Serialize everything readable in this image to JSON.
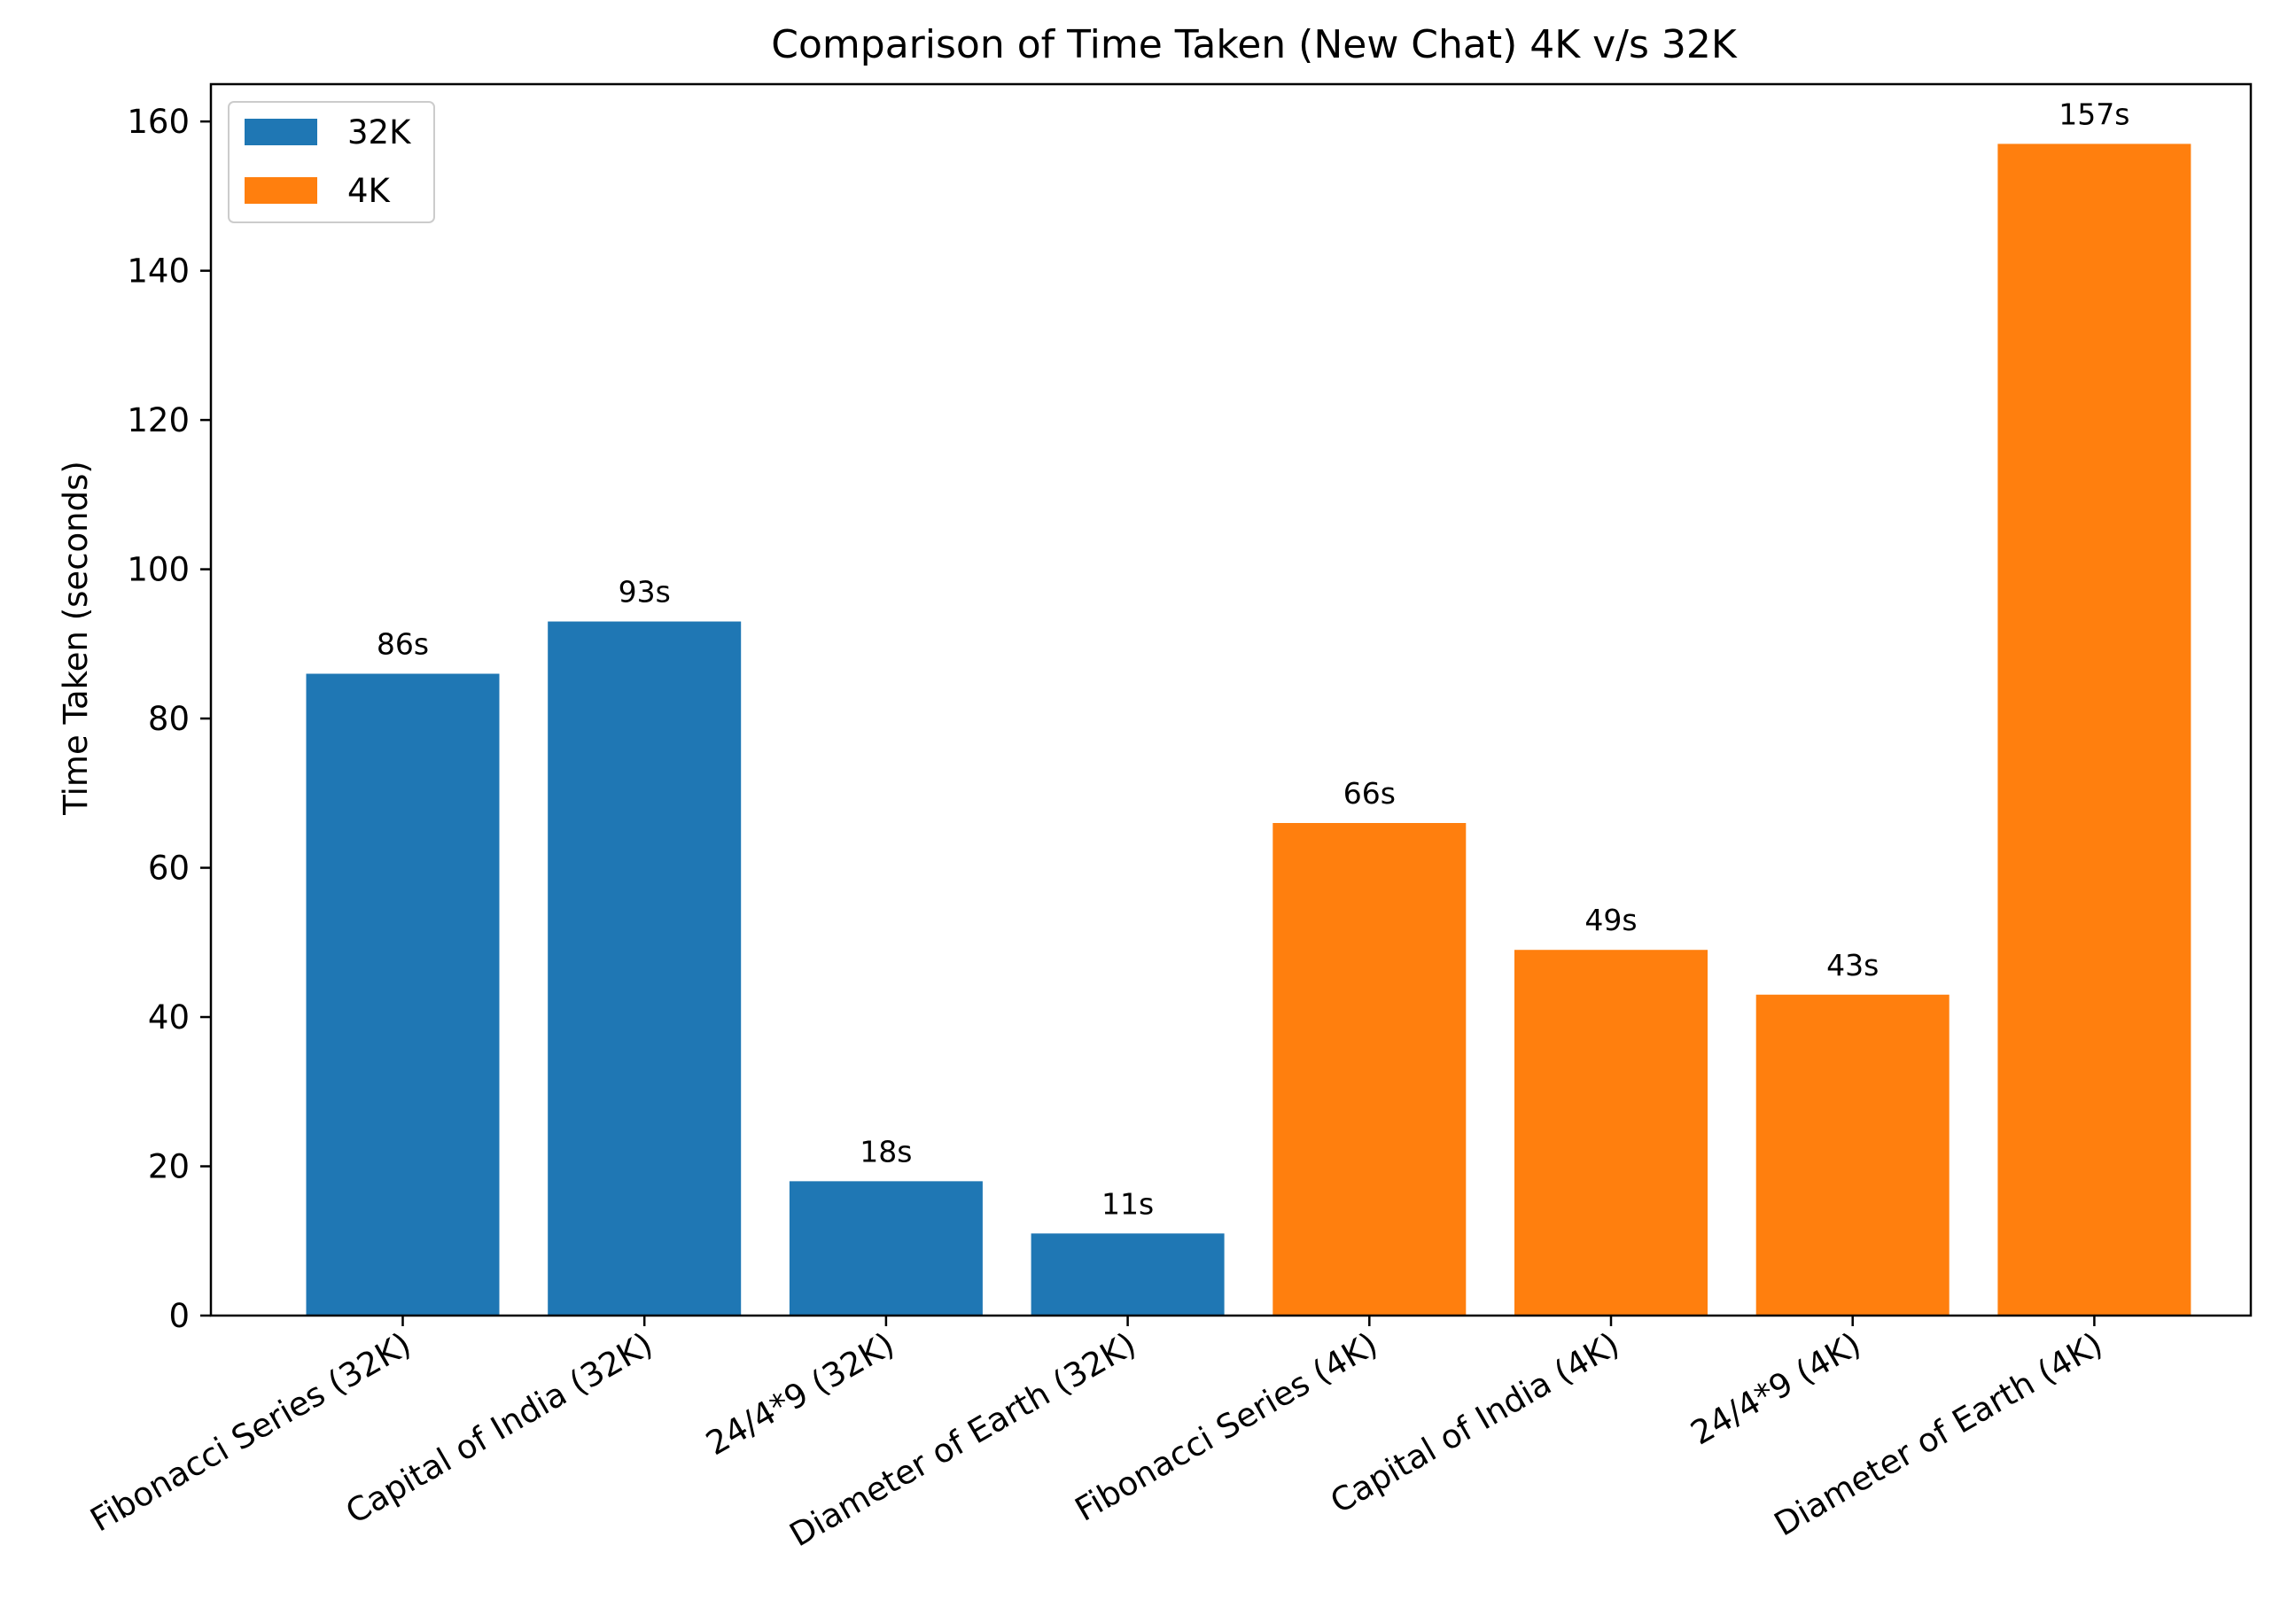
{
  "chart_data": {
    "type": "bar",
    "title": "Comparison of Time Taken (New Chat) 4K v/s 32K",
    "xlabel": "",
    "ylabel": "Time Taken (seconds)",
    "categories": [
      "Fibonacci Series (32K)",
      "Capital of India (32K)",
      "24/4*9 (32K)",
      "Diameter of Earth (32K)",
      "Fibonacci Series (4K)",
      "Capital of India (4K)",
      "24/4*9 (4K)",
      "Diameter of Earth (4K)"
    ],
    "series": [
      {
        "name": "32K",
        "color": "#1f77b4",
        "values": [
          86,
          93,
          18,
          11,
          null,
          null,
          null,
          null
        ]
      },
      {
        "name": "4K",
        "color": "#ff7f0e",
        "values": [
          null,
          null,
          null,
          null,
          66,
          49,
          43,
          157
        ]
      }
    ],
    "bar_labels": [
      "86s",
      "93s",
      "18s",
      "11s",
      "66s",
      "49s",
      "43s",
      "157s"
    ],
    "ylim": [
      0,
      165
    ],
    "yticks": [
      0,
      20,
      40,
      60,
      80,
      100,
      120,
      140,
      160
    ],
    "grid": false,
    "legend_position": "top-left"
  }
}
